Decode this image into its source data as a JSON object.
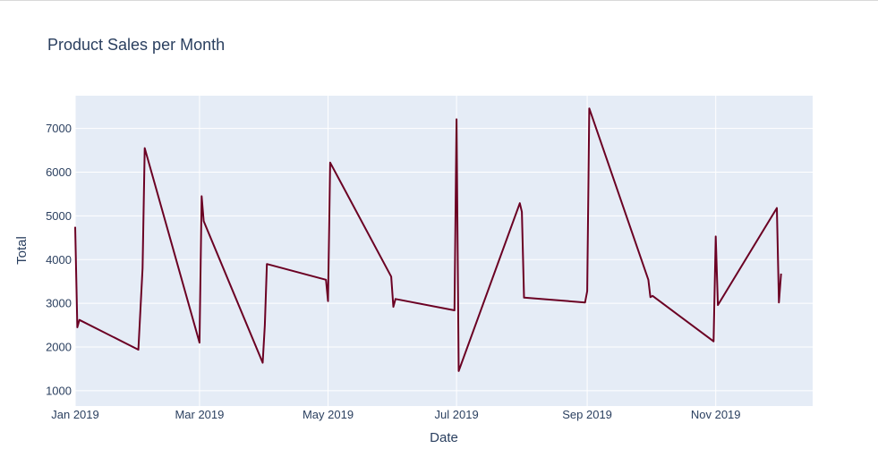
{
  "chart_data": {
    "type": "line",
    "title": "Product Sales per Month",
    "xlabel": "Date",
    "ylabel": "Total",
    "xlim": [
      "2019-01-01",
      "2019-12-17"
    ],
    "ylim": [
      650,
      7750
    ],
    "x_ticks": [
      {
        "date": "2019-01-01",
        "label": "Jan 2019"
      },
      {
        "date": "2019-03-01",
        "label": "Mar 2019"
      },
      {
        "date": "2019-05-01",
        "label": "May 2019"
      },
      {
        "date": "2019-07-01",
        "label": "Jul 2019"
      },
      {
        "date": "2019-09-01",
        "label": "Sep 2019"
      },
      {
        "date": "2019-11-01",
        "label": "Nov 2019"
      }
    ],
    "y_ticks": [
      1000,
      2000,
      3000,
      4000,
      5000,
      6000,
      7000
    ],
    "grid": true,
    "color": "#6b0023",
    "plot_bg": "#e5ecf6",
    "series": [
      {
        "x": [
          "2019-01-01",
          "2019-01-02",
          "2019-01-03",
          "2019-01-31",
          "2019-02-02",
          "2019-02-03",
          "2019-03-01",
          "2019-03-02",
          "2019-03-03",
          "2019-03-31",
          "2019-04-01",
          "2019-04-02",
          "2019-04-30",
          "2019-05-01",
          "2019-05-02",
          "2019-05-31",
          "2019-06-01",
          "2019-06-02",
          "2019-06-30",
          "2019-07-01",
          "2019-07-02",
          "2019-07-31",
          "2019-08-01",
          "2019-08-02",
          "2019-08-31",
          "2019-09-01",
          "2019-09-02",
          "2019-09-30",
          "2019-10-01",
          "2019-10-02",
          "2019-10-31",
          "2019-11-01",
          "2019-11-02",
          "2019-11-30",
          "2019-12-01",
          "2019-12-02"
        ],
        "y": [
          4750,
          2450,
          2620,
          1940,
          3800,
          6550,
          2100,
          5450,
          4880,
          1640,
          2500,
          3900,
          3540,
          3050,
          6220,
          3610,
          2920,
          3100,
          2840,
          7210,
          1450,
          5290,
          5090,
          3130,
          3020,
          3280,
          7460,
          3540,
          3140,
          3170,
          2130,
          4530,
          2960,
          5180,
          3020,
          3680
        ]
      }
    ]
  }
}
